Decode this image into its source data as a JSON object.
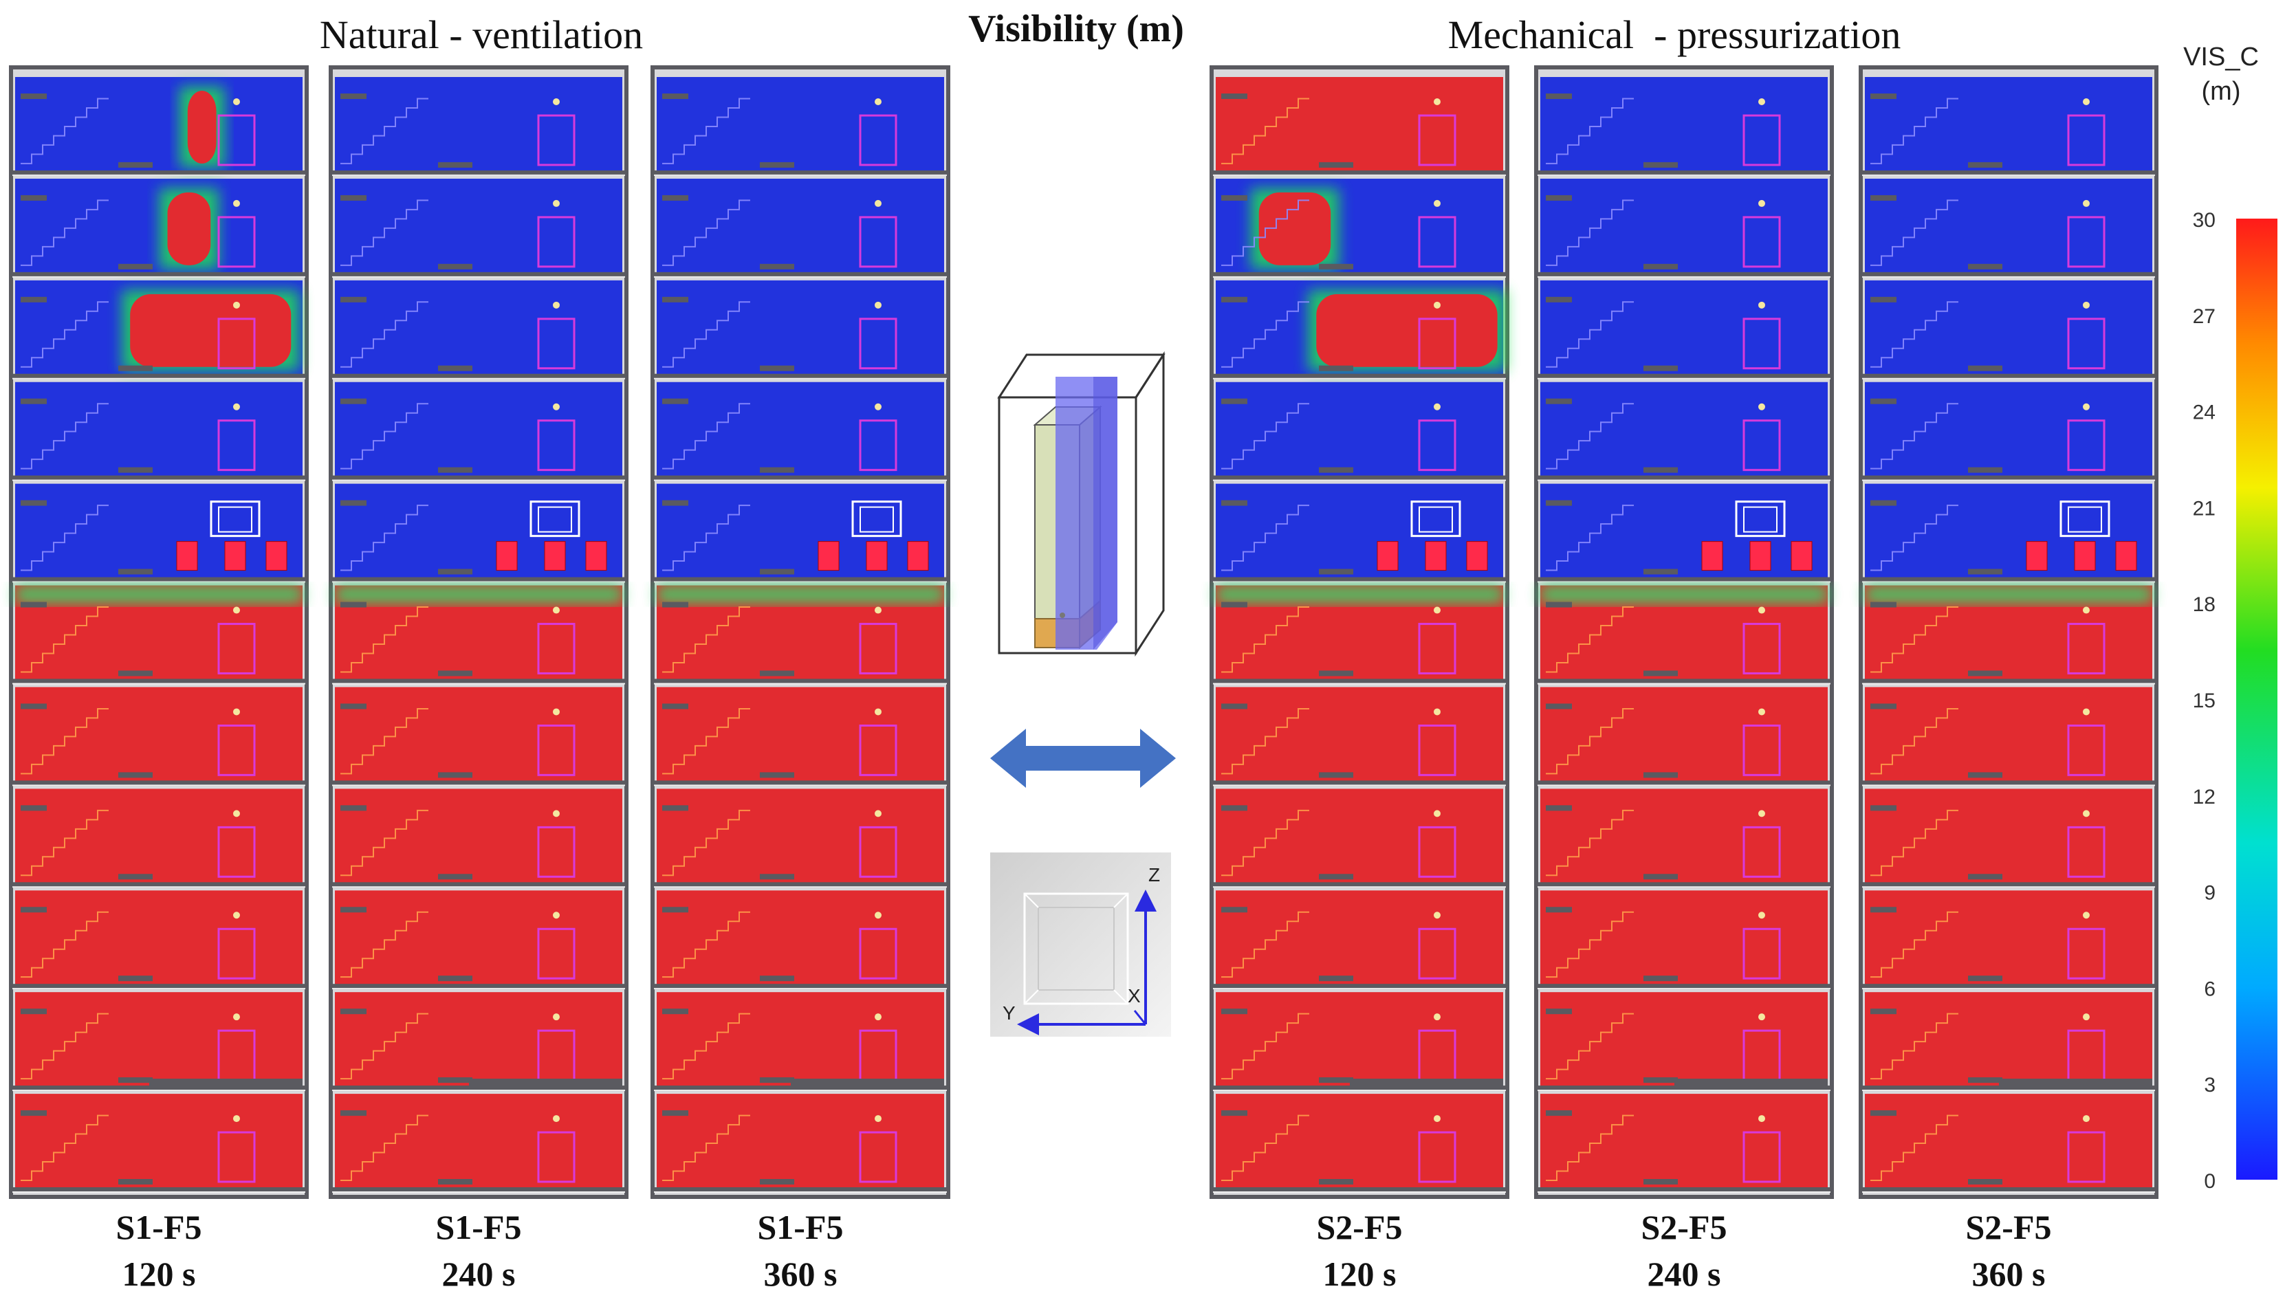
{
  "figure": {
    "title": "Visibility (m)",
    "group_left": "Natural - ventilation",
    "group_right": "Mechanical  - pressurization"
  },
  "panels": [
    {
      "scenario": "S1-F5",
      "time": "120 s",
      "group": "natural",
      "clear_floors": [
        0,
        1,
        2,
        3,
        4
      ],
      "bands": [
        [
          0.6,
          0.7
        ],
        [
          0.53,
          0.68
        ],
        [
          0.4,
          0.96
        ]
      ]
    },
    {
      "scenario": "S1-F5",
      "time": "240 s",
      "group": "natural",
      "clear_floors": [
        0,
        1,
        2,
        3,
        4
      ],
      "bands": []
    },
    {
      "scenario": "S1-F5",
      "time": "360 s",
      "group": "natural",
      "clear_floors": [
        0,
        1,
        2,
        3,
        4
      ],
      "bands": []
    },
    {
      "scenario": "S2-F5",
      "time": "120 s",
      "group": "mechanical",
      "clear_floors": [
        1,
        2,
        3,
        4
      ],
      "bands": [
        [
          0.25,
          0.45
        ],
        [
          0.15,
          0.4
        ],
        [
          0.35,
          0.98
        ]
      ]
    },
    {
      "scenario": "S2-F5",
      "time": "240 s",
      "group": "mechanical",
      "clear_floors": [
        0,
        1,
        2,
        3,
        4
      ],
      "bands": []
    },
    {
      "scenario": "S2-F5",
      "time": "360 s",
      "group": "mechanical",
      "clear_floors": [
        0,
        1,
        2,
        3,
        4
      ],
      "bands": []
    }
  ],
  "building_floors": 11,
  "fire_floor_index": 4,
  "colorbar": {
    "title_line1": "VIS_C",
    "title_line2": "(m)",
    "ticks": [
      "30",
      "27",
      "24",
      "21",
      "18",
      "15",
      "12",
      "9",
      "6",
      "3",
      "0"
    ],
    "min": 0,
    "max": 30
  },
  "axes_triad": {
    "z": "Z",
    "y": "Y",
    "x": "X"
  },
  "colors": {
    "low_visibility": "#e22b30",
    "high_visibility": "#2233dd",
    "frame": "#5a5a60",
    "stair_blue": "#8c8cff",
    "stair_red": "#ff9c4a",
    "door": "#d83adb",
    "exit_arrow": "#4472c4",
    "volume_green": "#d8e0b8",
    "volume_blue": "#6a6af0",
    "volume_orange": "#e0a850"
  }
}
